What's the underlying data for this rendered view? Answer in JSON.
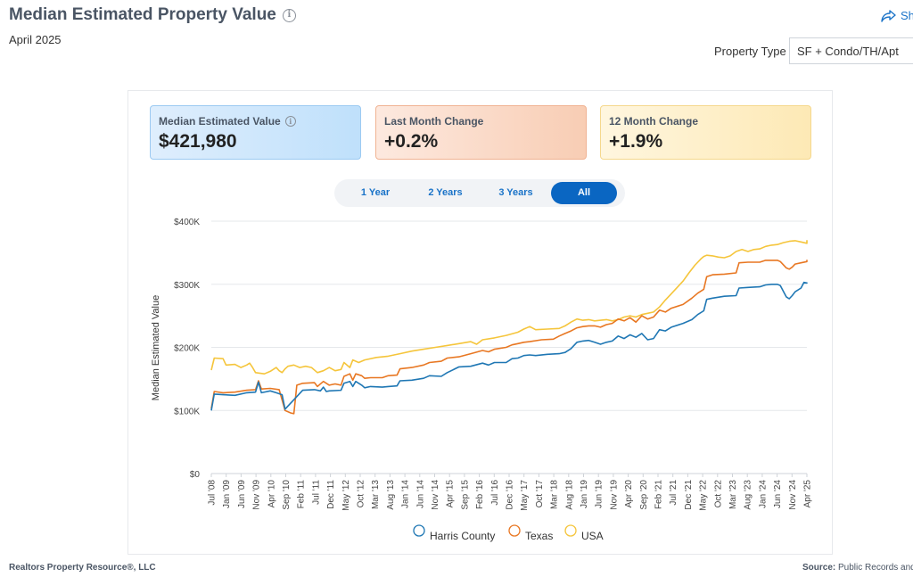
{
  "header": {
    "title": "Median Estimated Property Value",
    "subtitle": "April 2025",
    "share_label": "Sh",
    "property_type_label": "Property Type",
    "property_type_value": "SF + Condo/TH/Apt"
  },
  "kpis": [
    {
      "label": "Median Estimated Value",
      "value": "$421,980"
    },
    {
      "label": "Last Month Change",
      "value": "+0.2%"
    },
    {
      "label": "12 Month Change",
      "value": "+1.9%"
    }
  ],
  "range_buttons": [
    "1 Year",
    "2 Years",
    "3 Years",
    "All"
  ],
  "range_selected": "All",
  "footer": {
    "left": "Realtors Property Resource®, LLC",
    "right_label": "Source:",
    "right_text": "Public Records and"
  },
  "chart_data": {
    "type": "line",
    "ylabel": "Median Estimated Value",
    "xlabel": "",
    "ylim": [
      0,
      400000
    ],
    "yticks": [
      "$0",
      "$100K",
      "$200K",
      "$300K",
      "$400K"
    ],
    "xticks": [
      "Jul '08",
      "Jan '09",
      "Jun '09",
      "Nov '09",
      "Apr '10",
      "Sep '10",
      "Feb '11",
      "Jul '11",
      "Dec '11",
      "May '12",
      "Oct '12",
      "Mar '13",
      "Aug '13",
      "Jan '14",
      "Jun '14",
      "Nov '14",
      "Apr '15",
      "Sep '15",
      "Feb '16",
      "Jul '16",
      "Dec '16",
      "May '17",
      "Oct '17",
      "Mar '18",
      "Aug '18",
      "Jan '19",
      "Jun '19",
      "Nov '19",
      "Apr '20",
      "Sep '20",
      "Feb '21",
      "Jul '21",
      "Dec '21",
      "May '22",
      "Oct '22",
      "Mar '23",
      "Aug '23",
      "Jan '24",
      "Jun '24",
      "Nov '24",
      "Apr '25"
    ],
    "grid": true,
    "legend_position": "bottom-center",
    "x_start": "Jul '08",
    "x_end": "Apr '25",
    "series": [
      {
        "name": "Harris County",
        "color": "#1f77b4",
        "points": [
          [
            0,
            100000
          ],
          [
            1,
            126000
          ],
          [
            4,
            125000
          ],
          [
            8,
            124000
          ],
          [
            12,
            128000
          ],
          [
            15,
            129000
          ],
          [
            16,
            145000
          ],
          [
            17,
            128000
          ],
          [
            20,
            131000
          ],
          [
            22,
            128000
          ],
          [
            24,
            125000
          ],
          [
            25,
            102000
          ],
          [
            29,
            122000
          ],
          [
            31,
            132000
          ],
          [
            35,
            133000
          ],
          [
            37,
            131000
          ],
          [
            38,
            137000
          ],
          [
            39,
            130000
          ],
          [
            40,
            131000
          ],
          [
            44,
            132000
          ],
          [
            45,
            143000
          ],
          [
            47,
            146000
          ],
          [
            48,
            138000
          ],
          [
            49,
            146000
          ],
          [
            51,
            140000
          ],
          [
            52,
            136000
          ],
          [
            54,
            138000
          ],
          [
            58,
            137000
          ],
          [
            60,
            138000
          ],
          [
            63,
            139000
          ],
          [
            64,
            147000
          ],
          [
            68,
            148000
          ],
          [
            72,
            151000
          ],
          [
            74,
            155000
          ],
          [
            78,
            154000
          ],
          [
            80,
            160000
          ],
          [
            84,
            169000
          ],
          [
            88,
            170000
          ],
          [
            92,
            175000
          ],
          [
            94,
            172000
          ],
          [
            96,
            176000
          ],
          [
            100,
            176000
          ],
          [
            102,
            182000
          ],
          [
            104,
            183000
          ],
          [
            106,
            187000
          ],
          [
            108,
            188000
          ],
          [
            110,
            187000
          ],
          [
            114,
            189000
          ],
          [
            118,
            190000
          ],
          [
            120,
            192000
          ],
          [
            122,
            198000
          ],
          [
            124,
            208000
          ],
          [
            126,
            210000
          ],
          [
            128,
            211000
          ],
          [
            130,
            208000
          ],
          [
            132,
            205000
          ],
          [
            134,
            208000
          ],
          [
            136,
            210000
          ],
          [
            138,
            218000
          ],
          [
            140,
            214000
          ],
          [
            142,
            220000
          ],
          [
            144,
            216000
          ],
          [
            146,
            222000
          ],
          [
            148,
            212000
          ],
          [
            150,
            214000
          ],
          [
            152,
            228000
          ],
          [
            154,
            226000
          ],
          [
            156,
            232000
          ],
          [
            160,
            238000
          ],
          [
            163,
            244000
          ],
          [
            165,
            252000
          ],
          [
            167,
            258000
          ],
          [
            168,
            276000
          ],
          [
            170,
            278000
          ],
          [
            174,
            281000
          ],
          [
            178,
            282000
          ],
          [
            179,
            294000
          ],
          [
            182,
            295000
          ],
          [
            186,
            296000
          ],
          [
            188,
            299000
          ],
          [
            190,
            300000
          ],
          [
            192,
            300000
          ],
          [
            193,
            298000
          ],
          [
            195,
            280000
          ],
          [
            196,
            277000
          ],
          [
            197,
            282000
          ],
          [
            198,
            288000
          ],
          [
            200,
            294000
          ],
          [
            202,
            302000
          ],
          [
            204,
            303000
          ],
          [
            206,
            303000
          ],
          [
            201,
            303000
          ]
        ]
      },
      {
        "name": "Texas",
        "color": "#e87722",
        "points": [
          [
            0,
            103000
          ],
          [
            1,
            130000
          ],
          [
            4,
            128000
          ],
          [
            8,
            129000
          ],
          [
            12,
            132000
          ],
          [
            15,
            133000
          ],
          [
            16,
            147000
          ],
          [
            17,
            134000
          ],
          [
            20,
            135000
          ],
          [
            23,
            133000
          ],
          [
            25,
            100000
          ],
          [
            27,
            96000
          ],
          [
            28,
            95000
          ],
          [
            29,
            140000
          ],
          [
            31,
            143000
          ],
          [
            35,
            144000
          ],
          [
            36,
            138000
          ],
          [
            38,
            146000
          ],
          [
            40,
            140000
          ],
          [
            42,
            142000
          ],
          [
            44,
            140000
          ],
          [
            45,
            154000
          ],
          [
            47,
            158000
          ],
          [
            48,
            148000
          ],
          [
            49,
            158000
          ],
          [
            51,
            155000
          ],
          [
            52,
            151000
          ],
          [
            54,
            152000
          ],
          [
            58,
            152000
          ],
          [
            60,
            155000
          ],
          [
            63,
            156000
          ],
          [
            64,
            166000
          ],
          [
            68,
            168000
          ],
          [
            72,
            172000
          ],
          [
            74,
            176000
          ],
          [
            78,
            178000
          ],
          [
            80,
            183000
          ],
          [
            84,
            185000
          ],
          [
            88,
            190000
          ],
          [
            92,
            195000
          ],
          [
            94,
            193000
          ],
          [
            96,
            197000
          ],
          [
            100,
            200000
          ],
          [
            102,
            204000
          ],
          [
            104,
            206000
          ],
          [
            106,
            208000
          ],
          [
            108,
            209000
          ],
          [
            112,
            212000
          ],
          [
            116,
            213000
          ],
          [
            118,
            218000
          ],
          [
            120,
            222000
          ],
          [
            122,
            226000
          ],
          [
            124,
            231000
          ],
          [
            126,
            233000
          ],
          [
            128,
            234000
          ],
          [
            130,
            234000
          ],
          [
            132,
            232000
          ],
          [
            134,
            236000
          ],
          [
            136,
            238000
          ],
          [
            138,
            245000
          ],
          [
            140,
            242000
          ],
          [
            142,
            247000
          ],
          [
            144,
            240000
          ],
          [
            146,
            250000
          ],
          [
            148,
            245000
          ],
          [
            150,
            248000
          ],
          [
            152,
            259000
          ],
          [
            154,
            256000
          ],
          [
            156,
            262000
          ],
          [
            160,
            268000
          ],
          [
            163,
            278000
          ],
          [
            165,
            286000
          ],
          [
            167,
            292000
          ],
          [
            168,
            312000
          ],
          [
            170,
            315000
          ],
          [
            174,
            316000
          ],
          [
            178,
            318000
          ],
          [
            179,
            334000
          ],
          [
            182,
            335000
          ],
          [
            186,
            335000
          ],
          [
            188,
            338000
          ],
          [
            190,
            338000
          ],
          [
            192,
            338000
          ],
          [
            193,
            336000
          ],
          [
            195,
            326000
          ],
          [
            196,
            324000
          ],
          [
            197,
            327000
          ],
          [
            198,
            332000
          ],
          [
            200,
            334000
          ],
          [
            202,
            336000
          ],
          [
            204,
            338000
          ],
          [
            206,
            336000
          ]
        ]
      },
      {
        "name": "USA",
        "color": "#f5c53b",
        "points": [
          [
            0,
            164000
          ],
          [
            1,
            183000
          ],
          [
            4,
            182000
          ],
          [
            5,
            172000
          ],
          [
            8,
            173000
          ],
          [
            10,
            168000
          ],
          [
            12,
            172000
          ],
          [
            13,
            175000
          ],
          [
            14,
            168000
          ],
          [
            15,
            160000
          ],
          [
            18,
            158000
          ],
          [
            20,
            162000
          ],
          [
            22,
            168000
          ],
          [
            23,
            163000
          ],
          [
            24,
            160000
          ],
          [
            25,
            166000
          ],
          [
            26,
            170000
          ],
          [
            28,
            172000
          ],
          [
            30,
            168000
          ],
          [
            32,
            170000
          ],
          [
            34,
            168000
          ],
          [
            36,
            160000
          ],
          [
            38,
            163000
          ],
          [
            40,
            168000
          ],
          [
            42,
            163000
          ],
          [
            44,
            165000
          ],
          [
            45,
            176000
          ],
          [
            47,
            168000
          ],
          [
            48,
            180000
          ],
          [
            50,
            176000
          ],
          [
            52,
            180000
          ],
          [
            56,
            184000
          ],
          [
            60,
            186000
          ],
          [
            64,
            190000
          ],
          [
            68,
            194000
          ],
          [
            72,
            197000
          ],
          [
            76,
            200000
          ],
          [
            80,
            203000
          ],
          [
            84,
            206000
          ],
          [
            88,
            209000
          ],
          [
            90,
            205000
          ],
          [
            92,
            212000
          ],
          [
            96,
            215000
          ],
          [
            100,
            219000
          ],
          [
            104,
            224000
          ],
          [
            106,
            229000
          ],
          [
            108,
            233000
          ],
          [
            110,
            228000
          ],
          [
            114,
            229000
          ],
          [
            118,
            230000
          ],
          [
            120,
            234000
          ],
          [
            122,
            240000
          ],
          [
            124,
            245000
          ],
          [
            126,
            243000
          ],
          [
            128,
            244000
          ],
          [
            130,
            242000
          ],
          [
            134,
            244000
          ],
          [
            136,
            242000
          ],
          [
            138,
            244000
          ],
          [
            140,
            248000
          ],
          [
            142,
            250000
          ],
          [
            144,
            248000
          ],
          [
            146,
            252000
          ],
          [
            148,
            254000
          ],
          [
            150,
            256000
          ],
          [
            152,
            264000
          ],
          [
            154,
            275000
          ],
          [
            156,
            285000
          ],
          [
            158,
            295000
          ],
          [
            160,
            305000
          ],
          [
            162,
            318000
          ],
          [
            164,
            330000
          ],
          [
            166,
            340000
          ],
          [
            167,
            344000
          ],
          [
            168,
            346000
          ],
          [
            170,
            345000
          ],
          [
            172,
            343000
          ],
          [
            174,
            342000
          ],
          [
            176,
            345000
          ],
          [
            178,
            352000
          ],
          [
            180,
            355000
          ],
          [
            182,
            352000
          ],
          [
            184,
            355000
          ],
          [
            186,
            356000
          ],
          [
            188,
            360000
          ],
          [
            190,
            362000
          ],
          [
            192,
            363000
          ],
          [
            194,
            366000
          ],
          [
            196,
            368000
          ],
          [
            198,
            369000
          ],
          [
            200,
            367000
          ],
          [
            202,
            365000
          ],
          [
            204,
            369000
          ],
          [
            206,
            370000
          ]
        ]
      }
    ]
  }
}
